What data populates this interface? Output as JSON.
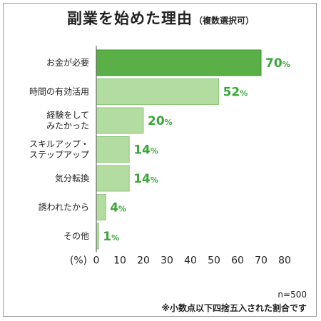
{
  "header": {
    "title": "副業を始めた理由",
    "subtitle": "（複数選択可）"
  },
  "chart_data": {
    "type": "bar",
    "orientation": "horizontal",
    "categories": [
      [
        "お金が必要"
      ],
      [
        "時間の有効活用"
      ],
      [
        "経験をして",
        "みたかった"
      ],
      [
        "スキルアップ・",
        "ステップアップ"
      ],
      [
        "気分転換"
      ],
      [
        "誘われたから"
      ],
      [
        "その他"
      ]
    ],
    "values": [
      70,
      52,
      20,
      14,
      14,
      4,
      1
    ],
    "value_suffix": "%",
    "xlabel": "(%)",
    "xlim": [
      0,
      80
    ],
    "xticks": [
      0,
      10,
      20,
      30,
      40,
      50,
      60,
      70,
      80
    ],
    "grid": false,
    "highlight_index": 0,
    "colors": {
      "highlight_bar": "#5ab046",
      "bar": "#b3dca0",
      "highlight_bar_border": "#3f8f31",
      "bar_border": "#8fc67a",
      "value_text": "#3aa63a",
      "axis": "#555555"
    }
  },
  "notes": {
    "sample": "n=500",
    "rounding": "※小数点以下四捨五入された割合です"
  }
}
